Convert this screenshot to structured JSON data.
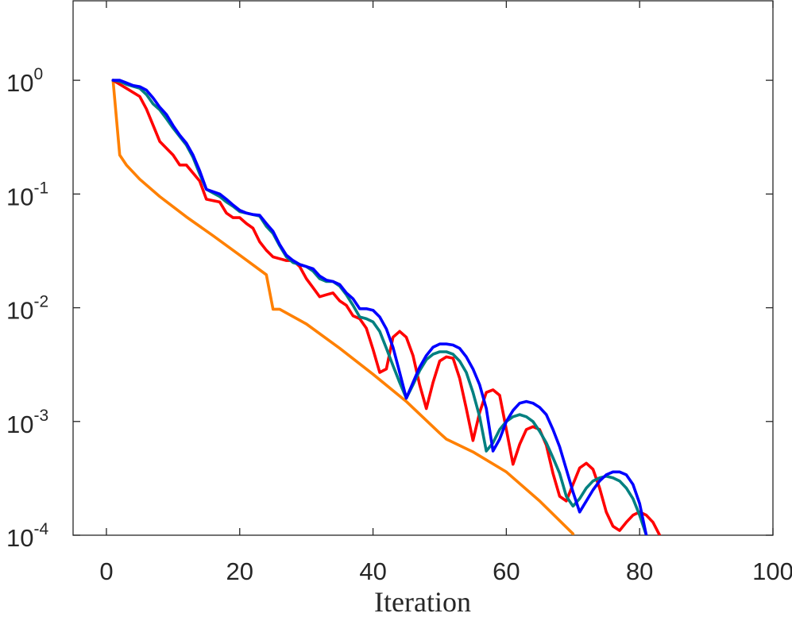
{
  "chart_data": {
    "type": "line",
    "title": "",
    "xlabel": "Iteration",
    "ylabel": "",
    "xlim": [
      -5,
      100
    ],
    "ylim": [
      0.0001,
      5
    ],
    "yscale": "log",
    "grid": false,
    "legend": "none",
    "x_ticks": [
      {
        "value": 0,
        "label": "0"
      },
      {
        "value": 20,
        "label": "20"
      },
      {
        "value": 40,
        "label": "40"
      },
      {
        "value": 60,
        "label": "60"
      },
      {
        "value": 80,
        "label": "80"
      },
      {
        "value": 100,
        "label": "100"
      }
    ],
    "y_ticks": [
      {
        "value": 1,
        "base": "10",
        "exp": "0"
      },
      {
        "value": 0.1,
        "base": "10",
        "exp": "-1"
      },
      {
        "value": 0.01,
        "base": "10",
        "exp": "-2"
      },
      {
        "value": 0.001,
        "base": "10",
        "exp": "-3"
      },
      {
        "value": 0.0001,
        "base": "10",
        "exp": "-4"
      }
    ],
    "series": [
      {
        "color": "#ff8000",
        "points": [
          [
            1,
            1
          ],
          [
            2,
            0.22
          ],
          [
            3,
            0.18
          ],
          [
            5,
            0.135
          ],
          [
            8,
            0.095
          ],
          [
            12,
            0.063
          ],
          [
            16,
            0.043
          ],
          [
            20,
            0.029
          ],
          [
            24,
            0.0195
          ],
          [
            25,
            0.0097
          ],
          [
            26,
            0.0097
          ],
          [
            30,
            0.0072
          ],
          [
            35,
            0.0044
          ],
          [
            40,
            0.0026
          ],
          [
            45,
            0.0015
          ],
          [
            50,
            0.00079
          ],
          [
            51,
            0.0007
          ],
          [
            55,
            0.00054
          ],
          [
            60,
            0.00036
          ],
          [
            65,
            0.0002
          ],
          [
            70,
            0.000103
          ]
        ]
      },
      {
        "color": "#ff0000",
        "points": [
          [
            1,
            1
          ],
          [
            3,
            0.85
          ],
          [
            5,
            0.72
          ],
          [
            6,
            0.56
          ],
          [
            8,
            0.29
          ],
          [
            10,
            0.22
          ],
          [
            11,
            0.18
          ],
          [
            12,
            0.18
          ],
          [
            14,
            0.13
          ],
          [
            15,
            0.09
          ],
          [
            17,
            0.085
          ],
          [
            18,
            0.068
          ],
          [
            19,
            0.062
          ],
          [
            20,
            0.062
          ],
          [
            21,
            0.055
          ],
          [
            22,
            0.05
          ],
          [
            23,
            0.038
          ],
          [
            24,
            0.032
          ],
          [
            25,
            0.028
          ],
          [
            26,
            0.027
          ],
          [
            27,
            0.026
          ],
          [
            28,
            0.026
          ],
          [
            29,
            0.023
          ],
          [
            30,
            0.018
          ],
          [
            31,
            0.015
          ],
          [
            32,
            0.0125
          ],
          [
            33,
            0.013
          ],
          [
            34,
            0.0135
          ],
          [
            35,
            0.0115
          ],
          [
            36,
            0.0105
          ],
          [
            37,
            0.0085
          ],
          [
            38,
            0.008
          ],
          [
            39,
            0.0066
          ],
          [
            40,
            0.0043
          ],
          [
            41,
            0.0027
          ],
          [
            42,
            0.0029
          ],
          [
            43,
            0.0055
          ],
          [
            44,
            0.0062
          ],
          [
            45,
            0.0055
          ],
          [
            46,
            0.0038
          ],
          [
            47,
            0.0021
          ],
          [
            48,
            0.0013
          ],
          [
            49,
            0.0022
          ],
          [
            50,
            0.0034
          ],
          [
            51,
            0.0037
          ],
          [
            52,
            0.0036
          ],
          [
            53,
            0.0024
          ],
          [
            54,
            0.0013
          ],
          [
            55,
            0.00068
          ],
          [
            56,
            0.0012
          ],
          [
            57,
            0.0018
          ],
          [
            58,
            0.0019
          ],
          [
            59,
            0.0017
          ],
          [
            60,
            0.00085
          ],
          [
            61,
            0.00042
          ],
          [
            62,
            0.00063
          ],
          [
            63,
            0.00085
          ],
          [
            64,
            0.0009
          ],
          [
            65,
            0.00085
          ],
          [
            66,
            0.00062
          ],
          [
            67,
            0.00035
          ],
          [
            68,
            0.00022
          ],
          [
            69,
            0.0002
          ],
          [
            70,
            0.00028
          ],
          [
            71,
            0.00039
          ],
          [
            72,
            0.00043
          ],
          [
            73,
            0.00038
          ],
          [
            74,
            0.00026
          ],
          [
            75,
            0.00016
          ],
          [
            76,
            0.00012
          ],
          [
            77,
            0.00011
          ],
          [
            78,
            0.00013
          ],
          [
            79,
            0.00015
          ],
          [
            80,
            0.00016
          ],
          [
            81,
            0.00015
          ],
          [
            82,
            0.00013
          ],
          [
            83,
            0.0001
          ]
        ]
      },
      {
        "color": "#008080",
        "points": [
          [
            1,
            1
          ],
          [
            2,
            0.98
          ],
          [
            3,
            0.92
          ],
          [
            5,
            0.85
          ],
          [
            6,
            0.75
          ],
          [
            7,
            0.62
          ],
          [
            8,
            0.55
          ],
          [
            9,
            0.46
          ],
          [
            10,
            0.38
          ],
          [
            12,
            0.27
          ],
          [
            13,
            0.21
          ],
          [
            14,
            0.15
          ],
          [
            15,
            0.11
          ],
          [
            17,
            0.095
          ],
          [
            18,
            0.085
          ],
          [
            19,
            0.078
          ],
          [
            20,
            0.07
          ],
          [
            22,
            0.066
          ],
          [
            23,
            0.064
          ],
          [
            24,
            0.052
          ],
          [
            25,
            0.045
          ],
          [
            26,
            0.035
          ],
          [
            27,
            0.028
          ],
          [
            28,
            0.025
          ],
          [
            29,
            0.024
          ],
          [
            30,
            0.023
          ],
          [
            31,
            0.021
          ],
          [
            32,
            0.018
          ],
          [
            33,
            0.017
          ],
          [
            34,
            0.017
          ],
          [
            35,
            0.0155
          ],
          [
            36,
            0.013
          ],
          [
            37,
            0.0105
          ],
          [
            38,
            0.0083
          ],
          [
            39,
            0.008
          ],
          [
            40,
            0.0075
          ],
          [
            41,
            0.0062
          ],
          [
            42,
            0.0044
          ],
          [
            43,
            0.0031
          ],
          [
            44,
            0.0022
          ],
          [
            45,
            0.0016
          ],
          [
            46,
            0.0021
          ],
          [
            47,
            0.0028
          ],
          [
            48,
            0.0035
          ],
          [
            49,
            0.0039
          ],
          [
            50,
            0.0041
          ],
          [
            51,
            0.0041
          ],
          [
            52,
            0.0039
          ],
          [
            53,
            0.0034
          ],
          [
            54,
            0.0027
          ],
          [
            55,
            0.0018
          ],
          [
            56,
            0.0011
          ],
          [
            57,
            0.00055
          ],
          [
            58,
            0.00065
          ],
          [
            59,
            0.00085
          ],
          [
            60,
            0.001
          ],
          [
            61,
            0.0011
          ],
          [
            62,
            0.00115
          ],
          [
            63,
            0.0011
          ],
          [
            64,
            0.001
          ],
          [
            65,
            0.00082
          ],
          [
            66,
            0.00065
          ],
          [
            67,
            0.00048
          ],
          [
            68,
            0.00035
          ],
          [
            69,
            0.00022
          ],
          [
            70,
            0.00018
          ],
          [
            71,
            0.00021
          ],
          [
            72,
            0.00026
          ],
          [
            73,
            0.0003
          ],
          [
            74,
            0.00032
          ],
          [
            75,
            0.00033
          ],
          [
            76,
            0.00032
          ],
          [
            77,
            0.0003
          ],
          [
            78,
            0.00026
          ],
          [
            79,
            0.00021
          ],
          [
            80,
            0.00015
          ],
          [
            81,
            0.0001
          ]
        ]
      },
      {
        "color": "#0000ff",
        "points": [
          [
            1,
            1
          ],
          [
            2,
            1
          ],
          [
            3,
            0.95
          ],
          [
            4,
            0.9
          ],
          [
            5,
            0.88
          ],
          [
            6,
            0.82
          ],
          [
            7,
            0.7
          ],
          [
            8,
            0.58
          ],
          [
            9,
            0.5
          ],
          [
            10,
            0.4
          ],
          [
            11,
            0.33
          ],
          [
            12,
            0.28
          ],
          [
            13,
            0.22
          ],
          [
            14,
            0.16
          ],
          [
            15,
            0.11
          ],
          [
            17,
            0.1
          ],
          [
            18,
            0.09
          ],
          [
            19,
            0.08
          ],
          [
            20,
            0.072
          ],
          [
            21,
            0.068
          ],
          [
            22,
            0.066
          ],
          [
            23,
            0.065
          ],
          [
            24,
            0.055
          ],
          [
            25,
            0.047
          ],
          [
            26,
            0.036
          ],
          [
            27,
            0.029
          ],
          [
            28,
            0.026
          ],
          [
            29,
            0.024
          ],
          [
            30,
            0.023
          ],
          [
            31,
            0.022
          ],
          [
            32,
            0.019
          ],
          [
            33,
            0.0175
          ],
          [
            34,
            0.017
          ],
          [
            35,
            0.016
          ],
          [
            36,
            0.0135
          ],
          [
            37,
            0.012
          ],
          [
            38,
            0.0098
          ],
          [
            39,
            0.0098
          ],
          [
            40,
            0.0095
          ],
          [
            41,
            0.0083
          ],
          [
            42,
            0.0065
          ],
          [
            43,
            0.0045
          ],
          [
            44,
            0.0027
          ],
          [
            45,
            0.0016
          ],
          [
            46,
            0.0022
          ],
          [
            47,
            0.003
          ],
          [
            48,
            0.0038
          ],
          [
            49,
            0.0045
          ],
          [
            50,
            0.0048
          ],
          [
            51,
            0.0048
          ],
          [
            52,
            0.0047
          ],
          [
            53,
            0.0044
          ],
          [
            54,
            0.0037
          ],
          [
            55,
            0.0029
          ],
          [
            56,
            0.0021
          ],
          [
            57,
            0.0013
          ],
          [
            58,
            0.00055
          ],
          [
            59,
            0.0007
          ],
          [
            60,
            0.001
          ],
          [
            61,
            0.00125
          ],
          [
            62,
            0.00145
          ],
          [
            63,
            0.0015
          ],
          [
            64,
            0.00145
          ],
          [
            65,
            0.00133
          ],
          [
            66,
            0.00115
          ],
          [
            67,
            0.00085
          ],
          [
            68,
            0.0006
          ],
          [
            69,
            0.00038
          ],
          [
            70,
            0.00024
          ],
          [
            71,
            0.00016
          ],
          [
            72,
            0.0002
          ],
          [
            73,
            0.00025
          ],
          [
            74,
            0.0003
          ],
          [
            75,
            0.00034
          ],
          [
            76,
            0.00036
          ],
          [
            77,
            0.00036
          ],
          [
            78,
            0.00034
          ],
          [
            79,
            0.00028
          ],
          [
            80,
            0.00019
          ],
          [
            81,
            0.0001
          ]
        ]
      }
    ]
  }
}
